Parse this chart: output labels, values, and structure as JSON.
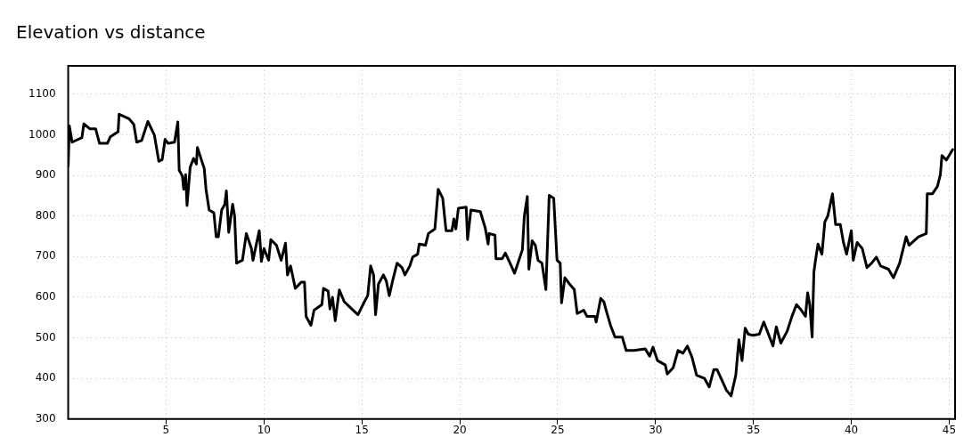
{
  "chart_data": {
    "type": "line",
    "title": "Elevation vs distance",
    "x": [
      0,
      0.06,
      0.2,
      0.7,
      0.8,
      1.1,
      1.4,
      1.6,
      2.0,
      2.15,
      2.55,
      2.6,
      3.1,
      3.35,
      3.5,
      3.75,
      4.07,
      4.4,
      4.63,
      4.8,
      4.95,
      5.1,
      5.43,
      5.6,
      5.67,
      5.83,
      5.9,
      6.0,
      6.07,
      6.23,
      6.4,
      6.55,
      6.6,
      6.8,
      6.95,
      7.04,
      7.2,
      7.44,
      7.56,
      7.67,
      7.84,
      8.0,
      8.08,
      8.2,
      8.4,
      8.5,
      8.6,
      8.9,
      9.1,
      9.36,
      9.44,
      9.6,
      9.76,
      9.87,
      10.0,
      10.24,
      10.35,
      10.64,
      10.88,
      11.1,
      11.2,
      11.36,
      11.6,
      11.9,
      12.07,
      12.15,
      12.4,
      12.56,
      12.96,
      13.04,
      13.28,
      13.37,
      13.5,
      13.64,
      13.85,
      14.1,
      14.4,
      14.8,
      15.13,
      15.3,
      15.45,
      15.6,
      15.7,
      15.85,
      16.1,
      16.25,
      16.4,
      16.57,
      16.8,
      17.05,
      17.2,
      17.45,
      17.6,
      17.85,
      17.93,
      18.25,
      18.4,
      18.73,
      18.9,
      19.13,
      19.3,
      19.6,
      19.7,
      19.8,
      19.93,
      20.33,
      20.4,
      20.57,
      21.05,
      21.3,
      21.45,
      21.5,
      21.8,
      21.85,
      22.17,
      22.33,
      22.57,
      22.8,
      22.97,
      23.2,
      23.3,
      23.45,
      23.53,
      23.7,
      23.86,
      24.0,
      24.2,
      24.4,
      24.57,
      24.8,
      24.97,
      25.13,
      25.2,
      25.37,
      25.6,
      25.85,
      26.0,
      26.33,
      26.5,
      26.9,
      26.97,
      27.2,
      27.36,
      27.5,
      27.7,
      27.93,
      28.3,
      28.5,
      28.9,
      29.47,
      29.7,
      29.87,
      30.1,
      30.5,
      30.6,
      30.9,
      31.15,
      31.4,
      31.63,
      31.87,
      32.1,
      32.5,
      32.74,
      32.98,
      33.14,
      33.38,
      33.62,
      33.86,
      34.1,
      34.26,
      34.42,
      34.58,
      34.74,
      34.98,
      35.3,
      35.53,
      35.77,
      36.0,
      36.17,
      36.4,
      36.73,
      36.97,
      37.2,
      37.45,
      37.66,
      37.77,
      37.88,
      38.0,
      38.09,
      38.17,
      38.3,
      38.5,
      38.65,
      38.8,
      39.04,
      39.2,
      39.44,
      39.6,
      39.76,
      40.0,
      40.1,
      40.3,
      40.56,
      40.8,
      41.04,
      41.28,
      41.5,
      41.9,
      42.15,
      42.47,
      42.8,
      42.95,
      43.43,
      43.83,
      43.88,
      44.15,
      44.4,
      44.55,
      44.63,
      44.86,
      45.18
    ],
    "series": [
      {
        "color": "#000000",
        "values": [
          924,
          1022,
          982,
          993,
          1027,
          1015,
          1015,
          979,
          979,
          995,
          1008,
          1051,
          1040,
          1026,
          982,
          986,
          1033,
          1000,
          935,
          939,
          989,
          979,
          982,
          1032,
          913,
          899,
          866,
          902,
          826,
          920,
          942,
          928,
          969,
          939,
          917,
          866,
          815,
          808,
          749,
          749,
          815,
          829,
          862,
          760,
          829,
          800,
          684,
          691,
          757,
          720,
          691,
          728,
          764,
          688,
          720,
          691,
          742,
          728,
          691,
          733,
          655,
          677,
          622,
          637,
          637,
          553,
          531,
          568,
          582,
          622,
          615,
          571,
          600,
          542,
          618,
          589,
          575,
          557,
          589,
          604,
          677,
          655,
          557,
          633,
          655,
          640,
          604,
          640,
          684,
          673,
          655,
          677,
          699,
          706,
          731,
          728,
          757,
          768,
          866,
          844,
          764,
          764,
          793,
          768,
          819,
          822,
          742,
          815,
          811,
          771,
          731,
          757,
          753,
          695,
          695,
          709,
          684,
          659,
          684,
          717,
          800,
          848,
          669,
          739,
          728,
          691,
          684,
          619,
          851,
          844,
          691,
          684,
          586,
          648,
          633,
          619,
          560,
          568,
          553,
          553,
          539,
          597,
          589,
          564,
          531,
          502,
          502,
          469,
          469,
          473,
          455,
          477,
          444,
          433,
          411,
          426,
          469,
          462,
          480,
          451,
          408,
          400,
          379,
          422,
          422,
          397,
          371,
          357,
          408,
          495,
          444,
          524,
          509,
          506,
          509,
          539,
          509,
          480,
          527,
          487,
          517,
          553,
          582,
          568,
          553,
          611,
          582,
          502,
          662,
          691,
          731,
          706,
          786,
          800,
          855,
          779,
          779,
          735,
          706,
          764,
          691,
          735,
          720,
          673,
          684,
          699,
          677,
          669,
          648,
          684,
          749,
          728,
          749,
          757,
          855,
          855,
          873,
          902,
          949,
          938,
          964
        ]
      }
    ],
    "xlim": [
      0,
      45.3
    ],
    "ylim": [
      300,
      1170
    ],
    "xticks": [
      5,
      10,
      15,
      20,
      25,
      30,
      35,
      40,
      45
    ],
    "yticks": [
      300,
      400,
      500,
      600,
      700,
      800,
      900,
      1000,
      1100
    ],
    "grid": true,
    "legend": false,
    "marker": "none",
    "line_style": "solid"
  }
}
